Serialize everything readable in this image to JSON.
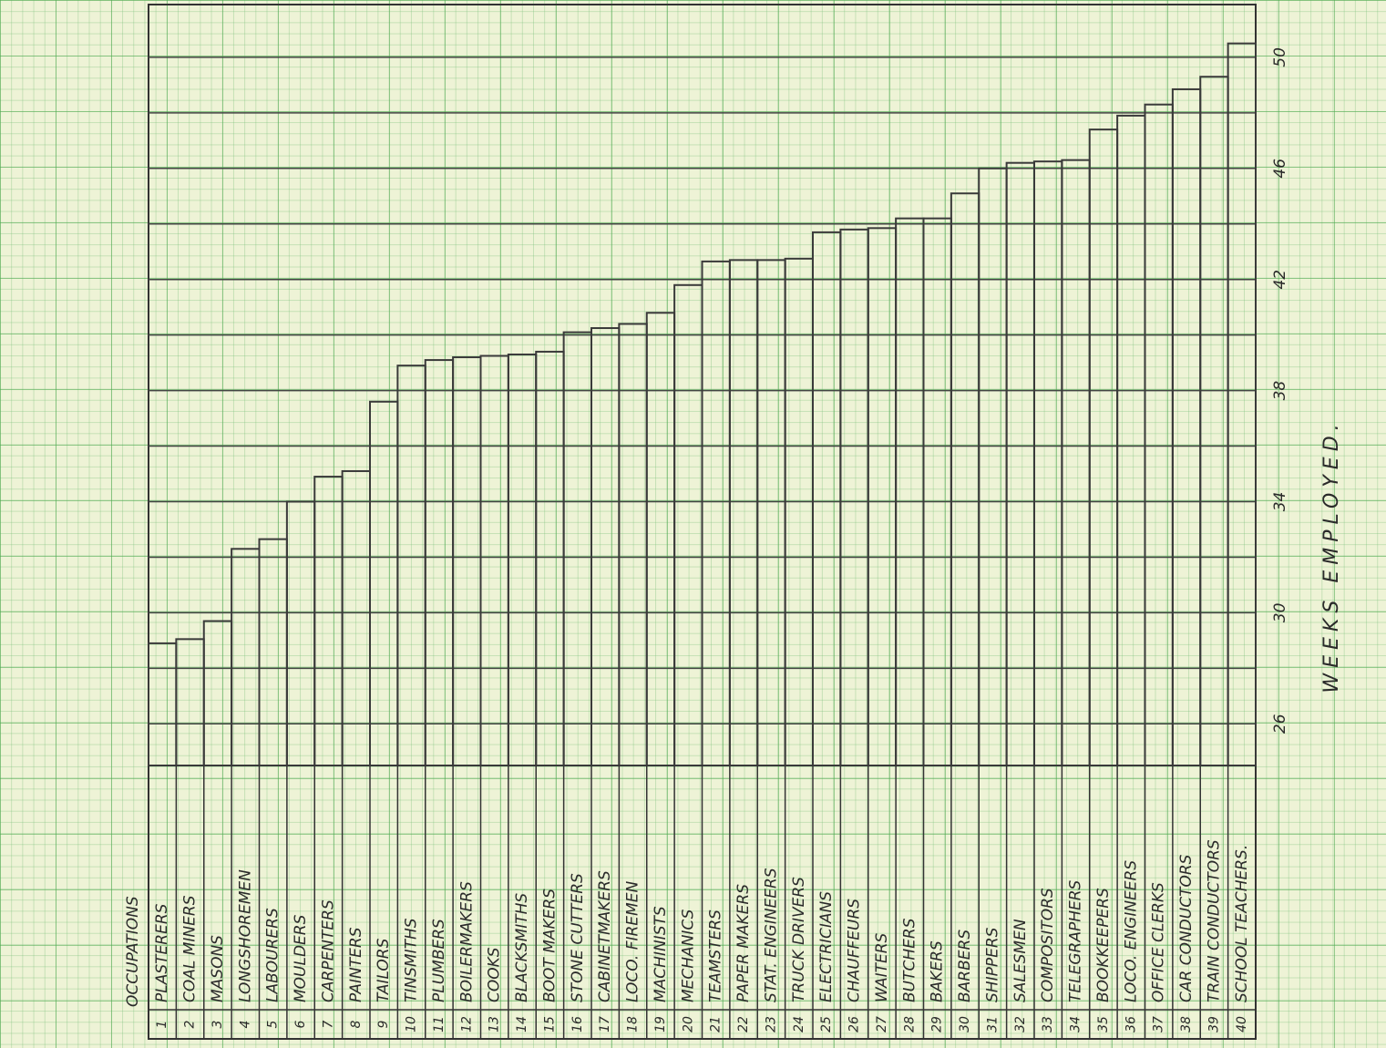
{
  "chart_data": {
    "type": "bar",
    "category_header": "OCCUPATIONS",
    "y_label": "WEEKS EMPLOYED.",
    "category_numbers": [
      1,
      2,
      3,
      4,
      5,
      6,
      7,
      8,
      9,
      10,
      11,
      12,
      13,
      14,
      15,
      16,
      17,
      18,
      19,
      20,
      21,
      22,
      23,
      24,
      25,
      26,
      27,
      28,
      29,
      30,
      31,
      32,
      33,
      34,
      35,
      36,
      37,
      38,
      39,
      40
    ],
    "categories": [
      "PLASTERERS",
      "COAL MINERS",
      "MASONS",
      "LONGSHOREMEN",
      "LABOURERS",
      "MOULDERS",
      "CARPENTERS",
      "PAINTERS",
      "TAILORS",
      "TINSMITHS",
      "PLUMBERS",
      "BOILERMAKERS",
      "COOKS",
      "BLACKSMITHS",
      "BOOT MAKERS",
      "STONE CUTTERS",
      "CABINETMAKERS",
      "LOCO. FIREMEN",
      "MACHINISTS",
      "MECHANICS",
      "TEAMSTERS",
      "PAPER MAKERS",
      "STAT. ENGINEERS",
      "TRUCK DRIVERS",
      "ELECTRICIANS",
      "CHAUFFEURS",
      "WAITERS",
      "BUTCHERS",
      "BAKERS",
      "BARBERS",
      "SHIPPERS",
      "SALESMEN",
      "COMPOSITORS",
      "TELEGRAPHERS",
      "BOOKKEEPERS",
      "LOCO. ENGINEERS",
      "OFFICE CLERKS",
      "CAR CONDUCTORS",
      "TRAIN CONDUCTORS",
      "SCHOOL TEACHERS."
    ],
    "values": [
      28.9,
      29.05,
      29.7,
      32.3,
      32.65,
      34.0,
      34.9,
      35.1,
      37.6,
      38.9,
      39.1,
      39.2,
      39.25,
      39.3,
      39.4,
      40.1,
      40.25,
      40.4,
      40.8,
      41.8,
      42.65,
      42.7,
      42.7,
      42.75,
      43.7,
      43.8,
      43.85,
      44.2,
      44.2,
      45.1,
      46.0,
      46.2,
      46.25,
      46.3,
      47.4,
      47.9,
      48.3,
      48.85,
      49.3,
      50.5
    ],
    "color": "#3a3a3a",
    "ylim": [
      24.5,
      51.9
    ],
    "yticks": [
      26,
      30,
      34,
      38,
      42,
      46,
      50
    ],
    "minor_yticks": [
      28,
      32,
      36,
      40,
      44,
      48
    ],
    "grid": true
  }
}
